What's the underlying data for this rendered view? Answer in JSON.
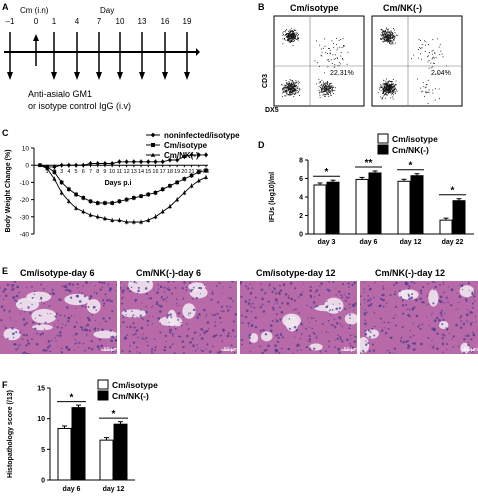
{
  "panel_letters": {
    "a": "A",
    "b": "B",
    "c": "C",
    "d": "D",
    "e": "E",
    "f": "F"
  },
  "panel_a": {
    "cm_label": "Cm (i.n)",
    "day_label": "Day",
    "days": [
      "–1",
      "0",
      "1",
      "4",
      "7",
      "10",
      "13",
      "16",
      "19"
    ],
    "caption_line1": "Anti-asialo GM1",
    "caption_line2": "or isotype control IgG (i.v)"
  },
  "panel_b": {
    "left_title": "Cm/isotype",
    "right_title": "Cm/NK(-)",
    "left_pct": "22.31%",
    "right_pct": "2.04%",
    "ylabel": "CD3",
    "xlabel": "DX5"
  },
  "panel_e": {
    "titles": [
      "Cm/isotype-day 6",
      "Cm/NK(-)-day 6",
      "Cm/isotype-day 12",
      "Cm/NK(-)-day 12"
    ],
    "scale_labels": [
      "50 µm",
      "50 µm",
      "50 µm",
      "50 µm"
    ],
    "colors": {
      "tissue": "#b86aa8",
      "dark": "#4b3a8e",
      "space": "#f0e6f0"
    }
  },
  "chart_data": [
    {
      "panel": "C",
      "type": "line",
      "ylabel": "Body Weight Change (%)",
      "xlabel": "Days p.i",
      "x": [
        0,
        1,
        2,
        3,
        4,
        5,
        6,
        7,
        8,
        9,
        10,
        11,
        12,
        13,
        14,
        15,
        16,
        17,
        18,
        19,
        20,
        21,
        22,
        23
      ],
      "x_tick_labels": [
        "1",
        "2",
        "3",
        "4",
        "5",
        "6",
        "7",
        "8",
        "9",
        "10",
        "11",
        "12",
        "13",
        "14",
        "15",
        "16",
        "17",
        "18",
        "19",
        "20",
        "21",
        "22",
        "23"
      ],
      "y_ticks": [
        10,
        0,
        -10,
        -20,
        -30,
        -40
      ],
      "ylim": [
        -40,
        10
      ],
      "legend_position": "top-right",
      "series": [
        {
          "name": "noninfected/isotype",
          "marker": "diamond",
          "values": [
            0,
            -1,
            -1,
            0,
            0,
            0,
            0,
            1,
            1,
            1,
            1,
            2,
            2,
            2,
            2,
            2,
            2,
            2,
            3,
            3,
            5,
            6,
            6,
            6
          ]
        },
        {
          "name": "Cm/isotype",
          "marker": "square",
          "values": [
            0,
            -1,
            -4,
            -10,
            -14,
            -17,
            -19,
            -21,
            -22,
            -22,
            -22,
            -21,
            -20,
            -19,
            -18,
            -17,
            -16,
            -14,
            -12,
            -10,
            -8,
            -6,
            -4,
            -3
          ]
        },
        {
          "name": "Cm/NK(-)",
          "marker": "triangle",
          "values": [
            0,
            -2,
            -8,
            -16,
            -21,
            -25,
            -27,
            -29,
            -30,
            -31,
            -32,
            -32,
            -33,
            -33,
            -33,
            -32,
            -30,
            -27,
            -24,
            -20,
            -16,
            -12,
            -9,
            -7
          ]
        }
      ]
    },
    {
      "panel": "D",
      "type": "bar",
      "ylabel": "IFUs (log10)/ml",
      "categories": [
        "day 3",
        "day 6",
        "day 12",
        "day 22"
      ],
      "y_ticks": [
        0,
        2,
        4,
        6,
        8
      ],
      "ylim": [
        0,
        8
      ],
      "series": [
        {
          "name": "Cm/isotype",
          "color": "#ffffff",
          "values": [
            5.3,
            5.9,
            5.7,
            1.5
          ]
        },
        {
          "name": "Cm/NK(-)",
          "color": "#000000",
          "values": [
            5.6,
            6.6,
            6.3,
            3.6
          ]
        }
      ],
      "significance": [
        "*",
        "**",
        "*",
        "*"
      ]
    },
    {
      "panel": "F",
      "type": "bar",
      "ylabel": "Histopathology score (/13)",
      "categories": [
        "day 6",
        "day 12"
      ],
      "y_ticks": [
        0,
        5,
        10,
        15
      ],
      "ylim": [
        0,
        15
      ],
      "series": [
        {
          "name": "Cm/isotype",
          "color": "#ffffff",
          "values": [
            8.4,
            6.5
          ]
        },
        {
          "name": "Cm/NK(-)",
          "color": "#000000",
          "values": [
            11.8,
            9.1
          ]
        }
      ],
      "significance": [
        "*",
        "*"
      ]
    }
  ]
}
